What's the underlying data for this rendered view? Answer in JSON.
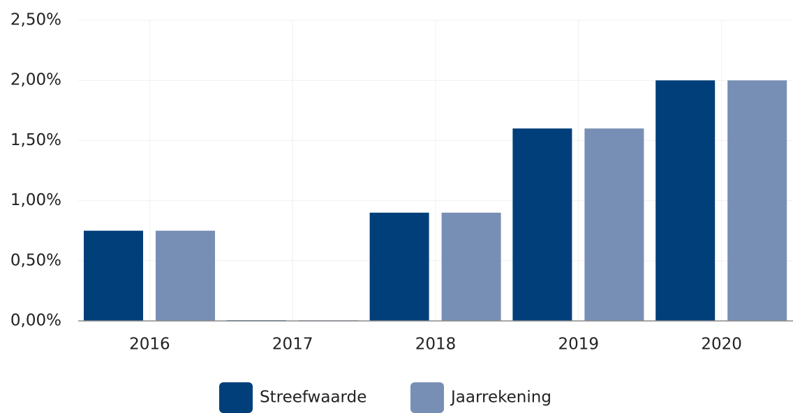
{
  "chart_data": {
    "type": "bar",
    "categories": [
      "2016",
      "2017",
      "2018",
      "2019",
      "2020"
    ],
    "series": [
      {
        "name": "Streefwaarde",
        "color": "#003f7a",
        "values": [
          0.75,
          0,
          0.9,
          1.6,
          2.0
        ]
      },
      {
        "name": "Jaarrekening",
        "color": "#788fb5",
        "values": [
          0.75,
          0,
          0.9,
          1.6,
          2.0
        ]
      }
    ],
    "ylim": [
      0,
      2.5
    ],
    "yticks": [
      {
        "value": 0,
        "label": "0,00%"
      },
      {
        "value": 0.5,
        "label": "0,50%"
      },
      {
        "value": 1,
        "label": "1,00%"
      },
      {
        "value": 1.5,
        "label": "1,50%"
      },
      {
        "value": 2,
        "label": "2,00%"
      },
      {
        "value": 2.5,
        "label": "2,50%"
      }
    ],
    "grid": true,
    "legend": "bottom"
  }
}
